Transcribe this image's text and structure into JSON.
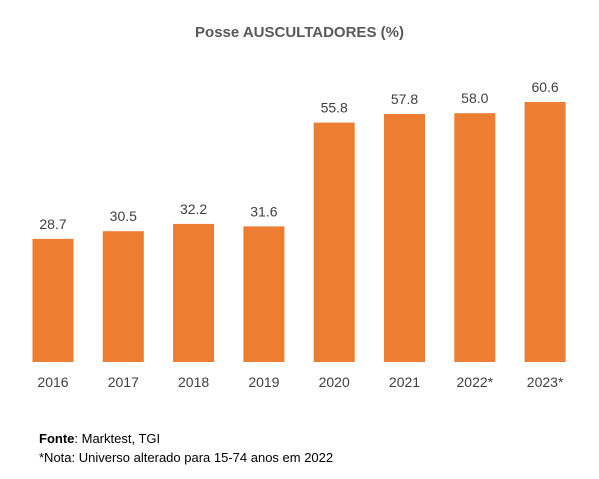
{
  "chart_data": {
    "type": "bar",
    "title": "Posse AUSCULTADORES (%)",
    "categories": [
      "2016",
      "2017",
      "2018",
      "2019",
      "2020",
      "2021",
      "2022*",
      "2023*"
    ],
    "series": [
      {
        "values": [
          28.7,
          30.5,
          32.2,
          31.6,
          55.8,
          57.8,
          58.0,
          60.6
        ],
        "labels": [
          "28.7",
          "30.5",
          "32.2",
          "31.6",
          "55.8",
          "57.8",
          "58.0",
          "60.6"
        ]
      }
    ],
    "ylim": [
      0,
      70
    ],
    "grid": false,
    "colors": {
      "bar": "#ED7D31"
    }
  },
  "footer": {
    "source_label": "Fonte",
    "source_text": ": Marktest, TGI",
    "note": "*Nota: Universo alterado para 15-74 anos em 2022"
  }
}
